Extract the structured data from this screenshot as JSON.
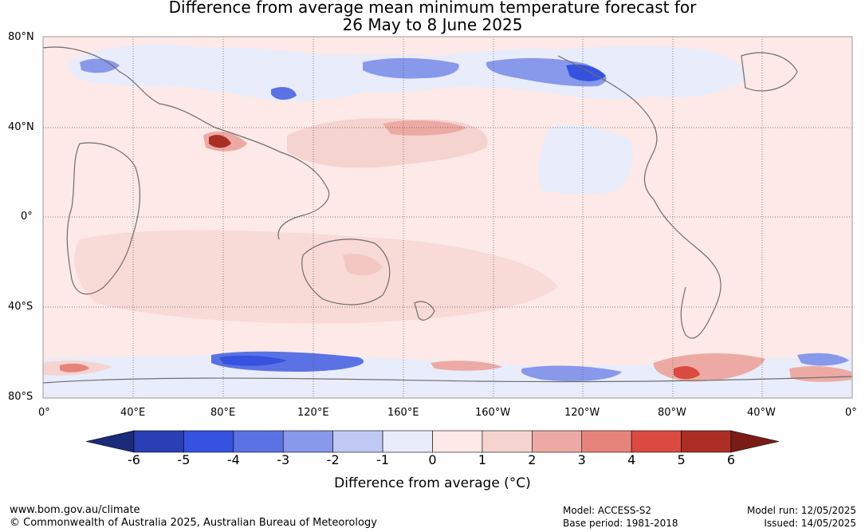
{
  "title_line1": "Difference from average mean minimum temperature forecast for",
  "title_line2": "26 May to 8 June 2025",
  "lat_labels": [
    "80°N",
    "40°N",
    "0°",
    "40°S",
    "80°S"
  ],
  "lon_labels": [
    "0°",
    "40°E",
    "80°E",
    "120°E",
    "160°E",
    "160°W",
    "120°W",
    "80°W",
    "40°W",
    "0°"
  ],
  "colorbar": {
    "ticks": [
      "-6",
      "-5",
      "-4",
      "-3",
      "-2",
      "-1",
      "0",
      "1",
      "2",
      "3",
      "4",
      "5",
      "6"
    ],
    "colors": [
      "#1c2a7a",
      "#2a3fb5",
      "#3552e0",
      "#5a72e3",
      "#8898ea",
      "#c0c9f3",
      "#e9ecfb",
      "#fde9e7",
      "#f5d3cf",
      "#edaaa4",
      "#e6847c",
      "#da4a40",
      "#ac2d24",
      "#7a1c16"
    ],
    "label": "Difference from average (°C)"
  },
  "footer": {
    "website": "www.bom.gov.au/climate",
    "copyright": "© Commonwealth of Australia 2025, Australian Bureau of Meteorology",
    "model": "Model: ACCESS-S2",
    "base_period": "Base period: 1981-2018",
    "model_run": "Model run: 12/05/2025",
    "issued": "Issued: 14/05/2025"
  }
}
